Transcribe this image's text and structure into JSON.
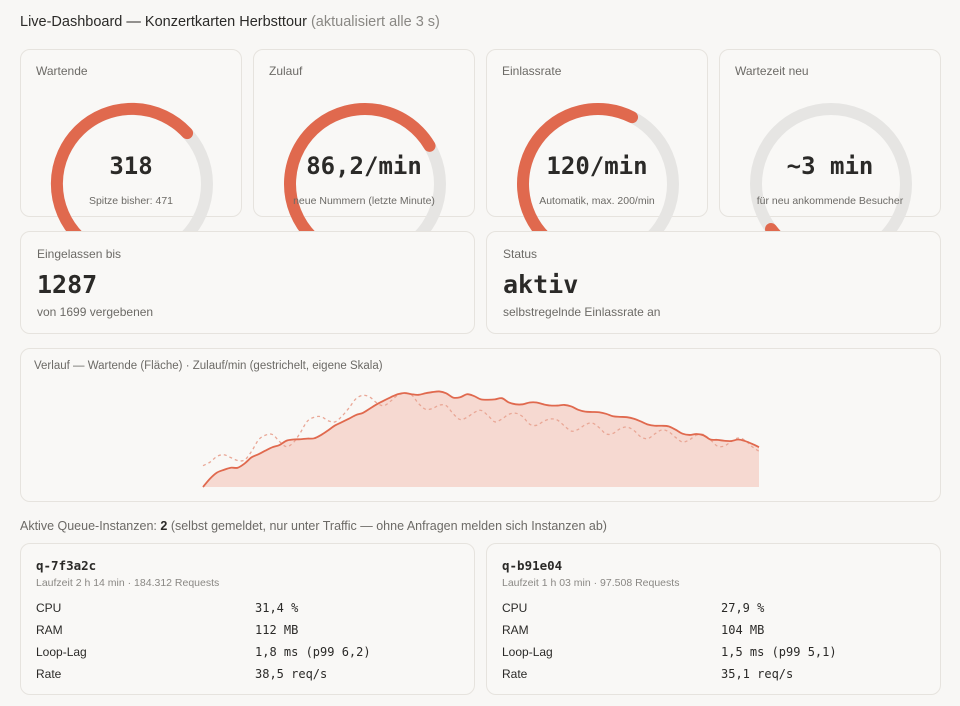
{
  "header": {
    "title": "Live-Dashboard — Konzertkarten Herbsttour",
    "subtitle": "(aktualisiert alle 3 s)"
  },
  "colors": {
    "accent": "#e0694e",
    "track": "#e6e5e3",
    "area_fill": "#f6d9d1",
    "background": "#f8f7f5"
  },
  "gauges": [
    {
      "label": "Wartende",
      "value": "318",
      "note": "Spitze bisher: 471",
      "fraction": 0.675
    },
    {
      "label": "Zulauf",
      "value": "86,2/min",
      "note": "neue Nummern (letzte Minute)",
      "fraction": 0.72
    },
    {
      "label": "Einlassrate",
      "value": "120/min",
      "note": "Automatik, max. 200/min",
      "fraction": 0.6
    },
    {
      "label": "Wartezeit neu",
      "value": "~3 min",
      "note": "für neu ankommende Besucher",
      "fraction": 0.03
    }
  ],
  "stats": {
    "admitted": {
      "label": "Eingelassen bis",
      "value": "1287",
      "note": "von 1699 vergebenen"
    },
    "status": {
      "label": "Status",
      "value": "aktiv",
      "note": "selbstregelnde Einlassrate an"
    }
  },
  "history": {
    "title": "Verlauf — Wartende (Fläche) · Zulauf/min (gestrichelt, eigene Skala)"
  },
  "chart_data": {
    "type": "area",
    "title": "Verlauf — Wartende (Fläche) · Zulauf/min (gestrichelt, eigene Skala)",
    "x": [
      0,
      1,
      2,
      3,
      4,
      5,
      6,
      7,
      8,
      9,
      10,
      11,
      12,
      13,
      14,
      15,
      16,
      17,
      18,
      19,
      20,
      21,
      22,
      23,
      24,
      25,
      26,
      27,
      28,
      29,
      30,
      31,
      32,
      33,
      34,
      35,
      36,
      37,
      38,
      39,
      40,
      41,
      42,
      43,
      44,
      45,
      46,
      47,
      48,
      49,
      50,
      51,
      52,
      53,
      54,
      55,
      56,
      57,
      58,
      59,
      60,
      61,
      62,
      63,
      64,
      65,
      66,
      67,
      68,
      69,
      70,
      71,
      72,
      73,
      74,
      75,
      76,
      77,
      78,
      79,
      80
    ],
    "series": [
      {
        "name": "Wartende",
        "style": "area",
        "values": [
          0,
          27,
          47,
          56,
          63,
          63,
          77,
          97,
          107,
          119,
          130,
          137,
          151,
          155,
          156,
          158,
          159,
          170,
          185,
          201,
          212,
          223,
          235,
          242,
          256,
          270,
          282,
          293,
          303,
          307,
          303,
          301,
          306,
          310,
          312,
          306,
          292,
          293,
          303,
          297,
          286,
          285,
          286,
          290,
          276,
          270,
          270,
          276,
          276,
          270,
          266,
          266,
          268,
          263,
          252,
          246,
          245,
          244,
          239,
          231,
          229,
          228,
          223,
          214,
          204,
          200,
          200,
          198,
          187,
          174,
          170,
          173,
          169,
          155,
          154,
          151,
          150,
          155,
          150,
          141,
          130
        ]
      },
      {
        "name": "Zulauf/min",
        "style": "dashed",
        "values": [
          37,
          43,
          53,
          56,
          51,
          46,
          47,
          62,
          82,
          90,
          91,
          79,
          70,
          77,
          94,
          114,
          121,
          122,
          115,
          113,
          123,
          137,
          153,
          159,
          156,
          146,
          141,
          149,
          159,
          162,
          160,
          145,
          135,
          136,
          142,
          141,
          127,
          117,
          121,
          129,
          133,
          124,
          113,
          118,
          126,
          128,
          122,
          109,
          107,
          114,
          118,
          116,
          106,
          97,
          100,
          108,
          111,
          103,
          92,
          93,
          101,
          104,
          98,
          87,
          84,
          92,
          99,
          96,
          86,
          78,
          82,
          90,
          91,
          82,
          71,
          71,
          79,
          85,
          81,
          70,
          62
        ]
      }
    ]
  },
  "instances": {
    "prefix": "Aktive Queue-Instanzen:",
    "count": "2",
    "suffix": "(selbst gemeldet, nur unter Traffic — ohne Anfragen melden sich Instanzen ab)",
    "list": [
      {
        "name": "q-7f3a2c",
        "runtime": "Laufzeit 2 h 14 min · 184.312 Requests",
        "metrics": [
          {
            "k": "CPU",
            "v": "31,4 %"
          },
          {
            "k": "RAM",
            "v": "112 MB"
          },
          {
            "k": "Loop-Lag",
            "v": "1,8 ms (p99 6,2)"
          },
          {
            "k": "Rate",
            "v": "38,5 req/s"
          }
        ]
      },
      {
        "name": "q-b91e04",
        "runtime": "Laufzeit 1 h 03 min · 97.508 Requests",
        "metrics": [
          {
            "k": "CPU",
            "v": "27,9 %"
          },
          {
            "k": "RAM",
            "v": "104 MB"
          },
          {
            "k": "Loop-Lag",
            "v": "1,5 ms (p99 5,1)"
          },
          {
            "k": "Rate",
            "v": "35,1 req/s"
          }
        ]
      }
    ]
  }
}
